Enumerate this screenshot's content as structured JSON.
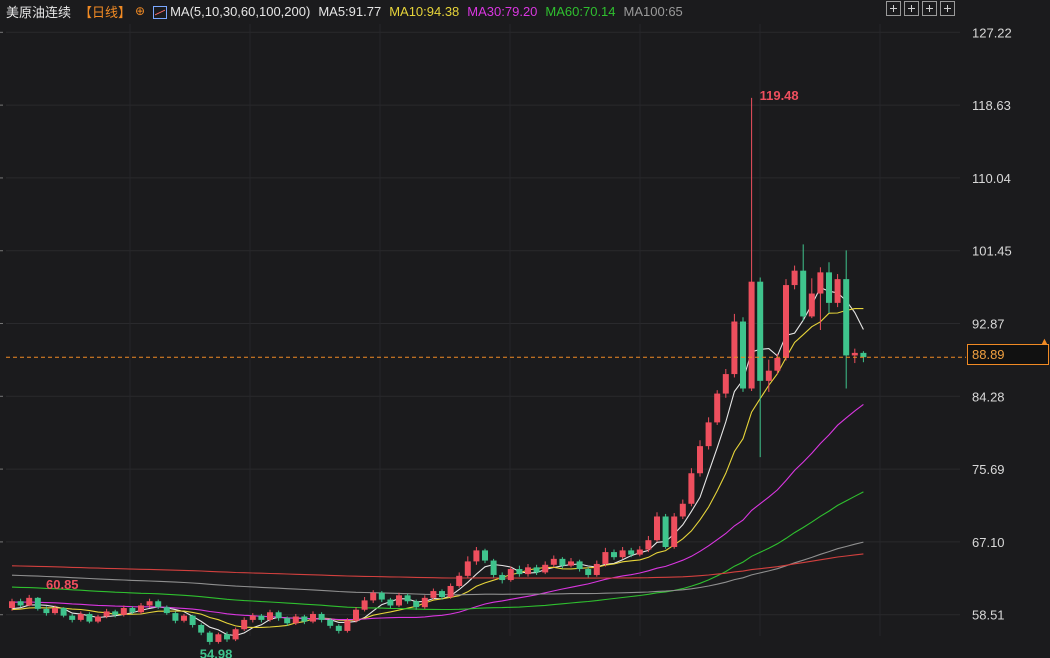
{
  "header": {
    "title": "美原油连续",
    "period": "【日线】",
    "plus_symbol": "⊕",
    "ma_label": "MA(5,10,30,60,100,200)",
    "ma5": "MA5:91.77",
    "ma10": "MA10:94.38",
    "ma30": "MA30:79.20",
    "ma60": "MA60:70.14",
    "ma100": "MA100:65"
  },
  "colors": {
    "up": "#ee4f5e",
    "down": "#3fc48d",
    "ma5": "#e6e6e6",
    "ma10": "#e6d43a",
    "ma30": "#d936e0",
    "ma60": "#2fc02f",
    "ma100": "#8f8f8f",
    "ma200": "#d2403e",
    "current_price": "#f08a24"
  },
  "icons": [
    "crosshair-icon",
    "zoom-icon",
    "play-icon",
    "exit-icon"
  ],
  "chart_data": {
    "type": "candlestick",
    "y_ticks": [
      "127.22",
      "118.63",
      "110.04",
      "101.45",
      "92.87",
      "84.28",
      "75.69",
      "67.10",
      "58.51"
    ],
    "ylim": [
      56.0,
      128.2
    ],
    "current_price": "88.89",
    "annotations": {
      "high": "119.48",
      "low": "54.98",
      "left_mark": "60.85"
    },
    "candles": [
      [
        59.3,
        60.1,
        59.0,
        60.4
      ],
      [
        60.1,
        59.6,
        59.4,
        60.4
      ],
      [
        59.6,
        60.5,
        59.5,
        60.85
      ],
      [
        60.5,
        59.2,
        59.0,
        60.6
      ],
      [
        59.2,
        58.7,
        58.4,
        59.5
      ],
      [
        58.7,
        59.3,
        58.5,
        59.6
      ],
      [
        59.3,
        58.4,
        58.2,
        59.4
      ],
      [
        58.4,
        57.9,
        57.6,
        58.6
      ],
      [
        57.9,
        58.6,
        57.7,
        58.9
      ],
      [
        58.6,
        57.7,
        57.5,
        58.8
      ],
      [
        57.7,
        58.3,
        57.5,
        58.5
      ],
      [
        58.3,
        58.9,
        58.1,
        59.2
      ],
      [
        58.9,
        58.5,
        58.2,
        59.1
      ],
      [
        58.5,
        59.3,
        58.3,
        59.6
      ],
      [
        59.3,
        58.8,
        58.6,
        59.5
      ],
      [
        58.8,
        59.6,
        58.6,
        59.9
      ],
      [
        59.6,
        60.1,
        59.3,
        60.4
      ],
      [
        60.1,
        59.4,
        59.2,
        60.3
      ],
      [
        59.4,
        58.7,
        58.5,
        59.6
      ],
      [
        58.7,
        57.8,
        57.5,
        58.9
      ],
      [
        57.8,
        58.4,
        57.6,
        58.6
      ],
      [
        58.4,
        57.3,
        57.0,
        58.5
      ],
      [
        57.3,
        56.4,
        56.1,
        57.5
      ],
      [
        56.4,
        55.3,
        54.98,
        56.6
      ],
      [
        55.3,
        56.2,
        55.1,
        56.4
      ],
      [
        56.2,
        55.6,
        55.3,
        56.5
      ],
      [
        55.6,
        56.8,
        55.4,
        57.0
      ],
      [
        56.8,
        57.9,
        56.6,
        58.2
      ],
      [
        57.9,
        58.4,
        57.6,
        58.7
      ],
      [
        58.4,
        57.9,
        57.6,
        58.6
      ],
      [
        57.9,
        58.8,
        57.7,
        59.1
      ],
      [
        58.8,
        58.1,
        57.8,
        59.0
      ],
      [
        58.1,
        57.5,
        57.2,
        58.3
      ],
      [
        57.5,
        58.3,
        57.3,
        58.6
      ],
      [
        58.3,
        57.7,
        57.4,
        58.5
      ],
      [
        57.7,
        58.6,
        57.5,
        58.9
      ],
      [
        58.6,
        57.9,
        57.6,
        58.8
      ],
      [
        57.9,
        57.2,
        56.9,
        58.1
      ],
      [
        57.2,
        56.6,
        56.3,
        57.4
      ],
      [
        56.6,
        57.8,
        56.4,
        58.1
      ],
      [
        57.8,
        59.1,
        57.6,
        59.4
      ],
      [
        59.1,
        60.2,
        58.9,
        60.6
      ],
      [
        60.2,
        61.1,
        59.9,
        61.4
      ],
      [
        61.1,
        60.3,
        60.0,
        61.3
      ],
      [
        60.3,
        59.6,
        59.3,
        60.5
      ],
      [
        59.6,
        60.8,
        59.4,
        61.1
      ],
      [
        60.8,
        60.1,
        59.8,
        61.0
      ],
      [
        60.1,
        59.4,
        59.1,
        60.3
      ],
      [
        59.4,
        60.5,
        59.2,
        60.8
      ],
      [
        60.5,
        61.3,
        60.3,
        61.6
      ],
      [
        61.3,
        60.6,
        60.3,
        61.5
      ],
      [
        60.6,
        61.9,
        60.4,
        62.2
      ],
      [
        61.9,
        63.1,
        61.7,
        63.5
      ],
      [
        63.1,
        64.8,
        62.9,
        65.4
      ],
      [
        64.8,
        66.1,
        64.4,
        66.5
      ],
      [
        66.1,
        64.9,
        64.6,
        66.3
      ],
      [
        64.9,
        63.2,
        62.9,
        65.1
      ],
      [
        63.2,
        62.6,
        62.2,
        63.5
      ],
      [
        62.6,
        63.9,
        62.4,
        64.2
      ],
      [
        63.9,
        63.3,
        63.0,
        64.3
      ],
      [
        63.3,
        64.1,
        63.0,
        64.5
      ],
      [
        64.1,
        63.5,
        63.2,
        64.4
      ],
      [
        63.5,
        64.4,
        63.3,
        64.8
      ],
      [
        64.4,
        65.1,
        64.1,
        65.5
      ],
      [
        65.1,
        64.3,
        64.0,
        65.3
      ],
      [
        64.3,
        64.8,
        64.1,
        65.2
      ],
      [
        64.8,
        63.9,
        63.6,
        65.0
      ],
      [
        63.9,
        63.2,
        62.9,
        64.1
      ],
      [
        63.2,
        64.5,
        63.0,
        64.9
      ],
      [
        64.5,
        65.9,
        64.2,
        66.4
      ],
      [
        65.9,
        65.3,
        65.0,
        66.2
      ],
      [
        65.3,
        66.1,
        65.1,
        66.5
      ],
      [
        66.1,
        65.6,
        65.3,
        66.4
      ],
      [
        65.6,
        66.2,
        65.4,
        66.6
      ],
      [
        66.2,
        67.3,
        65.9,
        67.8
      ],
      [
        67.3,
        70.1,
        67.1,
        70.6
      ],
      [
        70.1,
        66.5,
        66.3,
        70.4
      ],
      [
        66.5,
        70.1,
        66.3,
        70.5
      ],
      [
        70.1,
        71.6,
        69.8,
        72.1
      ],
      [
        71.6,
        75.2,
        71.3,
        75.8
      ],
      [
        75.2,
        78.4,
        74.8,
        79.1
      ],
      [
        78.4,
        81.2,
        78.0,
        81.8
      ],
      [
        81.2,
        84.6,
        80.9,
        85.0
      ],
      [
        84.6,
        86.9,
        84.1,
        87.5
      ],
      [
        86.9,
        93.1,
        86.5,
        94.0
      ],
      [
        93.1,
        85.2,
        84.8,
        93.6
      ],
      [
        85.2,
        97.8,
        84.9,
        119.48
      ],
      [
        97.8,
        86.1,
        77.1,
        98.3
      ],
      [
        86.1,
        87.3,
        84.8,
        88.6
      ],
      [
        87.3,
        88.8,
        86.9,
        89.3
      ],
      [
        88.8,
        97.4,
        88.5,
        98.1
      ],
      [
        97.4,
        99.1,
        96.9,
        99.7
      ],
      [
        99.1,
        93.7,
        93.2,
        102.2
      ],
      [
        93.7,
        96.4,
        93.5,
        98.2
      ],
      [
        96.4,
        98.9,
        92.1,
        99.5
      ],
      [
        98.9,
        95.3,
        94.1,
        100.1
      ],
      [
        95.3,
        98.1,
        94.8,
        98.7
      ],
      [
        98.1,
        89.1,
        85.2,
        101.5
      ],
      [
        89.1,
        89.4,
        88.2,
        89.9
      ],
      [
        89.4,
        88.89,
        88.3,
        89.6
      ]
    ]
  }
}
